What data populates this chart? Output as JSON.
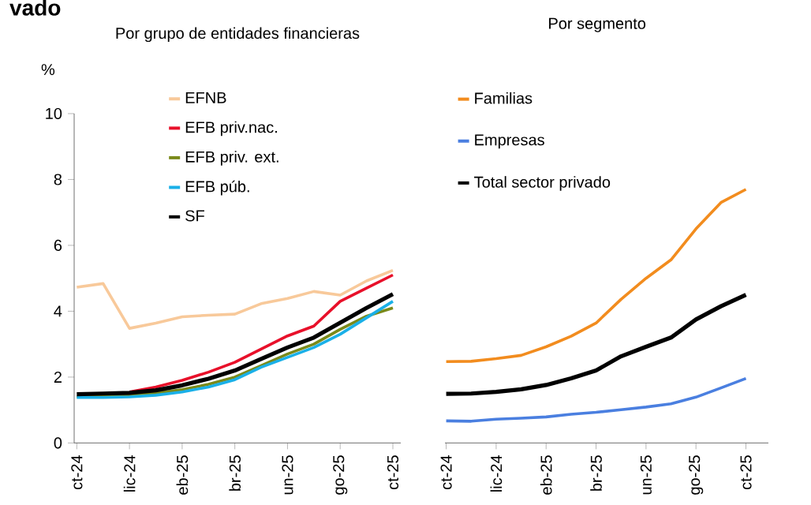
{
  "chart_data": [
    {
      "type": "line",
      "title": "vado",
      "subtitle": "Por grupo de entidades financieras",
      "ylabel": "%",
      "categories": [
        "ct-24",
        null,
        "lic-24",
        null,
        "eb-25",
        null,
        "br-25",
        null,
        "un-25",
        null,
        "go-25",
        null,
        "ct-25"
      ],
      "series": [
        {
          "name": "EFNB",
          "color": "#f8c99a",
          "values": [
            4.73,
            4.84,
            3.48,
            3.64,
            3.83,
            3.88,
            3.91,
            4.23,
            4.39,
            4.6,
            4.49,
            4.92,
            5.24
          ]
        },
        {
          "name": "EFB priv.nac.",
          "color": "#e8102a",
          "values": [
            null,
            null,
            1.55,
            1.7,
            1.9,
            2.15,
            2.45,
            2.85,
            3.25,
            3.55,
            4.3,
            4.7,
            5.1
          ]
        },
        {
          "name": "EFB priv. ext.",
          "color": "#7a8a1a",
          "values": [
            1.4,
            1.42,
            1.45,
            1.52,
            1.62,
            1.78,
            2.0,
            2.35,
            2.7,
            3.0,
            3.45,
            3.85,
            4.1
          ]
        },
        {
          "name": "EFB púb.",
          "color": "#1ab0e8",
          "values": [
            1.38,
            1.38,
            1.4,
            1.45,
            1.55,
            1.7,
            1.92,
            2.3,
            2.6,
            2.9,
            3.3,
            3.8,
            4.3
          ]
        },
        {
          "name": "SF",
          "color": "#000000",
          "values": [
            1.48,
            1.5,
            1.52,
            1.6,
            1.75,
            1.95,
            2.2,
            2.55,
            2.9,
            3.2,
            3.65,
            4.1,
            4.52
          ]
        }
      ],
      "ylim": [
        0,
        10
      ],
      "yticks": [
        0,
        2,
        4,
        6,
        8,
        10
      ],
      "legend": "top left"
    },
    {
      "type": "line",
      "title": "Por segmento",
      "categories": [
        "ct-24",
        null,
        "lic-24",
        null,
        "eb-25",
        null,
        "br-25",
        null,
        "un-25",
        null,
        "go-25",
        null,
        "ct-25"
      ],
      "series": [
        {
          "name": "Familias",
          "color": "#f28c1e",
          "values": [
            2.47,
            2.48,
            2.56,
            2.66,
            2.92,
            3.24,
            3.64,
            4.36,
            5.0,
            5.56,
            6.5,
            7.3,
            7.7
          ]
        },
        {
          "name": "Empresas",
          "color": "#4a7fe0",
          "values": [
            0.67,
            0.66,
            0.72,
            0.75,
            0.79,
            0.87,
            0.93,
            1.01,
            1.09,
            1.19,
            1.39,
            1.67,
            1.96
          ]
        },
        {
          "name": "Total sector privado",
          "color": "#000000",
          "values": [
            1.49,
            1.5,
            1.55,
            1.63,
            1.76,
            1.96,
            2.2,
            2.63,
            2.92,
            3.2,
            3.75,
            4.15,
            4.5
          ]
        }
      ],
      "ylim": [
        0,
        10
      ],
      "tick_labels": "x",
      "legend": "top left"
    }
  ]
}
